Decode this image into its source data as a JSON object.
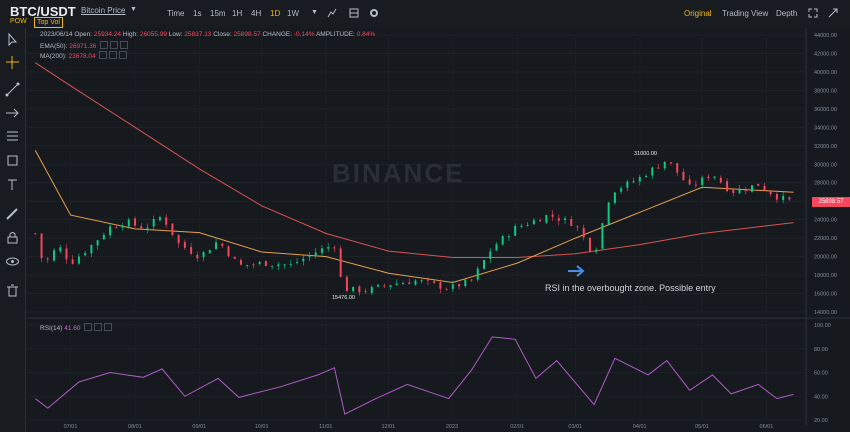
{
  "header": {
    "symbol": "BTC/USDT",
    "price_source": "Bitcoin Price",
    "badges": [
      "POW",
      "Top Vol"
    ],
    "timeframes": [
      {
        "label": "Time",
        "active": false
      },
      {
        "label": "1s",
        "active": false
      },
      {
        "label": "15m",
        "active": false
      },
      {
        "label": "1H",
        "active": false
      },
      {
        "label": "4H",
        "active": false
      },
      {
        "label": "1D",
        "active": true
      },
      {
        "label": "1W",
        "active": false
      }
    ],
    "views": [
      {
        "label": "Original",
        "active": true
      },
      {
        "label": "Trading View",
        "active": false
      },
      {
        "label": "Depth",
        "active": false
      }
    ]
  },
  "legend": {
    "date": "2023/06/14",
    "open_label": "Open:",
    "open": "25934.24",
    "high_label": "High:",
    "high": "26055.99",
    "low_label": "Low:",
    "low": "25837.13",
    "close_label": "Close:",
    "close": "25898.57",
    "change_label": "CHANGE:",
    "change": "-0.14%",
    "amplitude_label": "AMPLITUDE:",
    "amplitude": "0.84%",
    "ema_label": "EMA(50):",
    "ema_value": "26971.36",
    "ma_label": "MA(200):",
    "ma_value": "23678.04",
    "rsi_label": "RSI(14)",
    "rsi_value": "41.60"
  },
  "annotation": "RSI in the overbought zone. Possible entry",
  "watermark": "BINANCE",
  "current_price": "25898.57",
  "chart_data": {
    "type": "candlestick",
    "price_axis": {
      "ticks": [
        14000,
        16000,
        18000,
        20000,
        22000,
        24000,
        26000,
        28000,
        30000,
        32000,
        34000,
        36000,
        38000,
        40000,
        42000,
        44000
      ],
      "range": [
        14000,
        44000
      ]
    },
    "x_ticks": [
      "07/01",
      "08/01",
      "09/01",
      "10/01",
      "11/01",
      "12/01",
      "2023",
      "02/01",
      "03/01",
      "04/01",
      "05/01",
      "06/01"
    ],
    "rsi_axis": {
      "ticks": [
        20,
        40,
        60,
        80,
        100
      ],
      "range": [
        20,
        100
      ]
    },
    "high_label": "31000.00",
    "low_label": "15476.00",
    "close_path": [
      [
        "2022-06-14",
        22500
      ],
      [
        "2022-06-18",
        19000
      ],
      [
        "2022-06-25",
        21200
      ],
      [
        "2022-07-01",
        19300
      ],
      [
        "2022-07-10",
        21000
      ],
      [
        "2022-07-20",
        23200
      ],
      [
        "2022-07-28",
        23800
      ],
      [
        "2022-08-05",
        23000
      ],
      [
        "2022-08-14",
        24400
      ],
      [
        "2022-08-22",
        21400
      ],
      [
        "2022-09-01",
        20000
      ],
      [
        "2022-09-10",
        21700
      ],
      [
        "2022-09-20",
        19000
      ],
      [
        "2022-10-01",
        19300
      ],
      [
        "2022-10-15",
        19100
      ],
      [
        "2022-10-28",
        20600
      ],
      [
        "2022-11-05",
        21300
      ],
      [
        "2022-11-09",
        16500
      ],
      [
        "2022-11-20",
        16300
      ],
      [
        "2022-12-01",
        17000
      ],
      [
        "2022-12-15",
        17400
      ],
      [
        "2022-12-30",
        16550
      ],
      [
        "2023-01-10",
        17400
      ],
      [
        "2023-01-20",
        21000
      ],
      [
        "2023-01-31",
        23100
      ],
      [
        "2023-02-16",
        24500
      ],
      [
        "2023-03-01",
        23500
      ],
      [
        "2023-03-10",
        20200
      ],
      [
        "2023-03-18",
        27000
      ],
      [
        "2023-03-31",
        28400
      ],
      [
        "2023-04-14",
        30500
      ],
      [
        "2023-04-25",
        27500
      ],
      [
        "2023-05-06",
        29000
      ],
      [
        "2023-05-15",
        27000
      ],
      [
        "2023-05-28",
        27800
      ],
      [
        "2023-06-06",
        26500
      ],
      [
        "2023-06-14",
        25900
      ]
    ],
    "ema50_path": [
      [
        "2022-06-14",
        31500
      ],
      [
        "2022-07-01",
        24500
      ],
      [
        "2022-08-01",
        23000
      ],
      [
        "2022-09-01",
        22600
      ],
      [
        "2022-10-01",
        20500
      ],
      [
        "2022-11-01",
        20000
      ],
      [
        "2022-12-01",
        18200
      ],
      [
        "2023-01-01",
        17200
      ],
      [
        "2023-02-01",
        19300
      ],
      [
        "2023-03-01",
        22000
      ],
      [
        "2023-04-01",
        24800
      ],
      [
        "2023-05-01",
        27500
      ],
      [
        "2023-06-14",
        26971
      ]
    ],
    "ma200_path": [
      [
        "2022-06-14",
        41000
      ],
      [
        "2022-07-01",
        38500
      ],
      [
        "2022-08-01",
        34000
      ],
      [
        "2022-09-01",
        29500
      ],
      [
        "2022-10-01",
        25500
      ],
      [
        "2022-11-01",
        22500
      ],
      [
        "2022-12-01",
        20600
      ],
      [
        "2023-01-01",
        19900
      ],
      [
        "2023-02-01",
        19900
      ],
      [
        "2023-03-01",
        20300
      ],
      [
        "2023-04-01",
        21300
      ],
      [
        "2023-05-01",
        22500
      ],
      [
        "2023-06-14",
        23678
      ]
    ],
    "rsi_path": [
      [
        "2022-06-14",
        38
      ],
      [
        "2022-06-20",
        30
      ],
      [
        "2022-07-05",
        52
      ],
      [
        "2022-07-20",
        60
      ],
      [
        "2022-08-05",
        56
      ],
      [
        "2022-08-14",
        63
      ],
      [
        "2022-08-25",
        40
      ],
      [
        "2022-09-10",
        55
      ],
      [
        "2022-09-20",
        39
      ],
      [
        "2022-10-10",
        48
      ],
      [
        "2022-10-28",
        58
      ],
      [
        "2022-11-05",
        64
      ],
      [
        "2022-11-10",
        25
      ],
      [
        "2022-11-25",
        38
      ],
      [
        "2022-12-10",
        50
      ],
      [
        "2022-12-30",
        38
      ],
      [
        "2023-01-10",
        62
      ],
      [
        "2023-01-20",
        90
      ],
      [
        "2023-01-31",
        88
      ],
      [
        "2023-02-10",
        55
      ],
      [
        "2023-02-20",
        70
      ],
      [
        "2023-03-10",
        33
      ],
      [
        "2023-03-20",
        72
      ],
      [
        "2023-04-05",
        58
      ],
      [
        "2023-04-14",
        70
      ],
      [
        "2023-04-25",
        45
      ],
      [
        "2023-05-06",
        58
      ],
      [
        "2023-05-15",
        42
      ],
      [
        "2023-05-28",
        50
      ],
      [
        "2023-06-06",
        38
      ],
      [
        "2023-06-14",
        41.6
      ]
    ]
  }
}
